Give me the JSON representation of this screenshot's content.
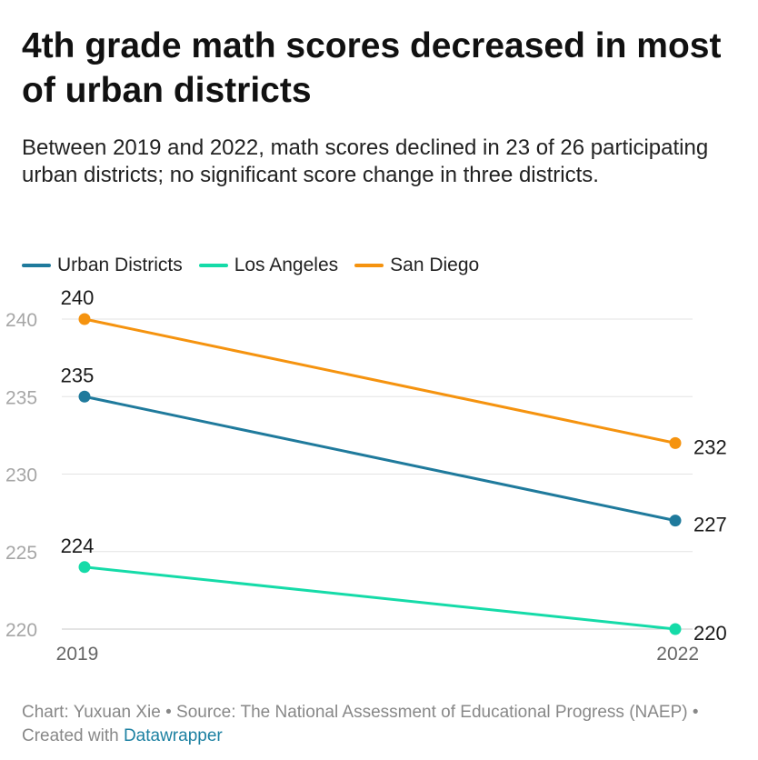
{
  "title": "4th grade math scores decreased in most of urban districts",
  "subtitle": "Between 2019 and 2022, math scores declined in 23 of 26 participating urban districts; no significant score change in three districts.",
  "footer": {
    "chart_prefix": "Chart: ",
    "author": "Yuxuan Xie",
    "sep1": " • ",
    "source_prefix": "Source: ",
    "source": "The National Assessment of Educational Progress (NAEP)",
    "sep2": " • ",
    "created_prefix": "Created with ",
    "tool": "Datawrapper"
  },
  "chart_data": {
    "type": "line",
    "title": "4th grade math scores decreased in most of urban districts",
    "x": [
      "2019",
      "2022"
    ],
    "yticks": [
      220,
      225,
      230,
      235,
      240
    ],
    "ylim": [
      220,
      240
    ],
    "grid": true,
    "legend_position": "top-left",
    "series": [
      {
        "name": "Urban Districts",
        "values": [
          235,
          227
        ],
        "color": "#1f7a9c"
      },
      {
        "name": "Los Angeles",
        "values": [
          224,
          220
        ],
        "color": "#15dba8"
      },
      {
        "name": "San Diego",
        "values": [
          240,
          232
        ],
        "color": "#f5930f"
      }
    ]
  }
}
